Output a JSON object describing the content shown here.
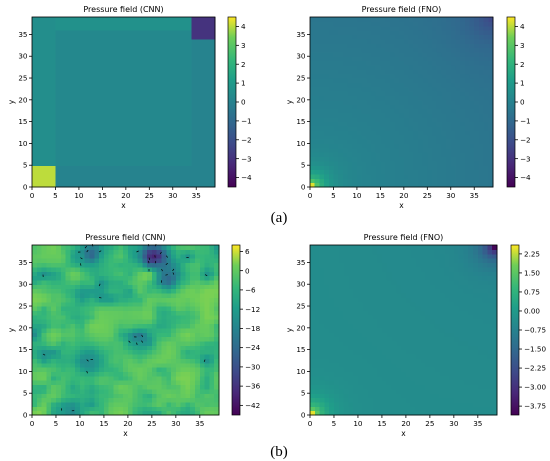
{
  "captions": [
    "(a)",
    "(b)"
  ],
  "chart_data": [
    {
      "type": "heatmap",
      "title": "Pressure field (CNN)",
      "xlabel": "x",
      "ylabel": "y",
      "xlim": [
        0,
        39
      ],
      "ylim": [
        0,
        39
      ],
      "xticks": [
        "0",
        "5",
        "10",
        "15",
        "20",
        "25",
        "30",
        "35"
      ],
      "yticks": [
        "0",
        "5",
        "10",
        "15",
        "20",
        "25",
        "30",
        "35"
      ],
      "colormap": "viridis",
      "color_range": [
        -4.5,
        4.5
      ],
      "colorbar_ticks": [
        "4",
        "3",
        "2",
        "1",
        "0",
        "−1",
        "−2",
        "−3",
        "−4"
      ],
      "colorbar_values": [
        4,
        3,
        2,
        1,
        0,
        -1,
        -2,
        -3,
        -4
      ],
      "field_description": "uniform ~0.2 with a dark (~-3.5) block at top-right corner and bright (~4) block at bottom-left corner, slight borders along edges"
    },
    {
      "type": "heatmap",
      "title": "Pressure field (FNO)",
      "xlabel": "x",
      "ylabel": "y",
      "xlim": [
        0,
        39
      ],
      "ylim": [
        0,
        39
      ],
      "xticks": [
        "0",
        "5",
        "10",
        "15",
        "20",
        "25",
        "30",
        "35"
      ],
      "yticks": [
        "0",
        "5",
        "10",
        "15",
        "20",
        "25",
        "30",
        "35"
      ],
      "colormap": "viridis",
      "color_range": [
        -4.5,
        4.5
      ],
      "colorbar_ticks": [
        "4",
        "3",
        "2",
        "1",
        "0",
        "−1",
        "−2",
        "−3",
        "−4"
      ],
      "colorbar_values": [
        4,
        3,
        2,
        1,
        0,
        -1,
        -2,
        -3,
        -4
      ],
      "field_description": "smooth radial gradient: high (~4) at bottom-left corner falling to low (~-2) at top-right corner"
    },
    {
      "type": "heatmap",
      "title": "Pressure field (CNN)",
      "xlabel": "x",
      "ylabel": "y",
      "xlim": [
        0,
        39
      ],
      "ylim": [
        0,
        39
      ],
      "xticks": [
        "0",
        "5",
        "10",
        "15",
        "20",
        "25",
        "30",
        "35"
      ],
      "yticks": [
        "0",
        "5",
        "10",
        "15",
        "20",
        "25",
        "30",
        "35"
      ],
      "colormap": "viridis",
      "color_range": [
        -45,
        8
      ],
      "colorbar_ticks": [
        "6",
        "0",
        "−6",
        "−12",
        "−18",
        "−24",
        "−30",
        "−36",
        "−42"
      ],
      "colorbar_values": [
        6,
        0,
        -6,
        -12,
        -18,
        -24,
        -30,
        -36,
        -42
      ],
      "field_description": "noisy patchy field mostly high values (bright green/yellow) with dark blobs near top center, quiver arrows overlaid"
    },
    {
      "type": "heatmap",
      "title": "Pressure field (FNO)",
      "xlabel": "x",
      "ylabel": "y",
      "xlim": [
        0,
        39
      ],
      "ylim": [
        0,
        39
      ],
      "xticks": [
        "0",
        "5",
        "10",
        "15",
        "20",
        "25",
        "30",
        "35"
      ],
      "yticks": [
        "0",
        "5",
        "10",
        "15",
        "20",
        "25",
        "30",
        "35"
      ],
      "colormap": "viridis",
      "color_range": [
        -4.1,
        2.6
      ],
      "colorbar_ticks": [
        "2.25",
        "1.50",
        "0.75",
        "0.00",
        "−0.75",
        "−1.50",
        "−2.25",
        "−3.00",
        "−3.75"
      ],
      "colorbar_values": [
        2.25,
        1.5,
        0.75,
        0,
        -0.75,
        -1.5,
        -2.25,
        -3.0,
        -3.75
      ],
      "field_description": "smooth field ~-0.5 with bright (~2.3) bottom-left corner and dark (~-3.9) top-right corner"
    }
  ]
}
